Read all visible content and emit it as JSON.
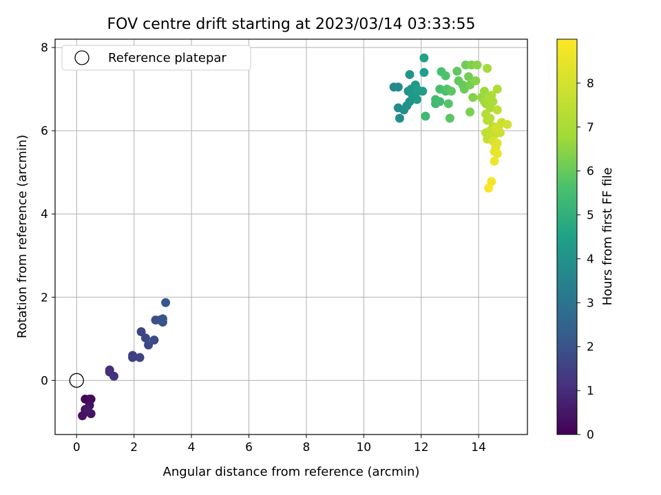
{
  "chart_data": {
    "type": "scatter",
    "title": "FOV centre drift starting at 2023/03/14 03:33:55",
    "xlabel": "Angular distance from reference (arcmin)",
    "ylabel": "Rotation from reference (arcmin)",
    "xlim": [
      -0.75,
      15.7
    ],
    "ylim": [
      -1.3,
      8.2
    ],
    "xticks": [
      0,
      2,
      4,
      6,
      8,
      10,
      12,
      14
    ],
    "yticks": [
      0,
      2,
      4,
      6,
      8
    ],
    "grid": true,
    "legend": {
      "placement": "top-left",
      "entries": [
        {
          "label": "Reference platepar",
          "marker": "open-circle"
        }
      ]
    },
    "reference_point": {
      "x": 0,
      "y": 0
    },
    "colorbar": {
      "label": "Hours from first FF file",
      "colormap": "viridis",
      "range": [
        0,
        9
      ],
      "ticks": [
        0,
        1,
        2,
        3,
        4,
        5,
        6,
        7,
        8
      ]
    },
    "points": [
      {
        "x": 0.3,
        "y": -0.45,
        "hours": 0.1
      },
      {
        "x": 0.45,
        "y": -0.45,
        "hours": 0.15
      },
      {
        "x": 0.5,
        "y": -0.45,
        "hours": 0.2
      },
      {
        "x": 0.3,
        "y": -0.7,
        "hours": 0.25
      },
      {
        "x": 0.45,
        "y": -0.6,
        "hours": 0.3
      },
      {
        "x": 0.4,
        "y": -0.75,
        "hours": 0.35
      },
      {
        "x": 0.2,
        "y": -0.85,
        "hours": 0.4
      },
      {
        "x": 0.5,
        "y": -0.8,
        "hours": 0.45
      },
      {
        "x": 0.35,
        "y": -0.7,
        "hours": 0.5
      },
      {
        "x": 1.15,
        "y": 0.25,
        "hours": 1.0
      },
      {
        "x": 1.15,
        "y": 0.2,
        "hours": 1.05
      },
      {
        "x": 1.3,
        "y": 0.1,
        "hours": 1.1
      },
      {
        "x": 1.95,
        "y": 0.6,
        "hours": 1.4
      },
      {
        "x": 1.95,
        "y": 0.55,
        "hours": 1.45
      },
      {
        "x": 2.2,
        "y": 0.55,
        "hours": 1.5
      },
      {
        "x": 2.25,
        "y": 1.17,
        "hours": 1.6
      },
      {
        "x": 2.4,
        "y": 1.02,
        "hours": 1.7
      },
      {
        "x": 2.5,
        "y": 0.85,
        "hours": 1.75
      },
      {
        "x": 2.7,
        "y": 0.97,
        "hours": 1.8
      },
      {
        "x": 2.75,
        "y": 1.45,
        "hours": 1.9
      },
      {
        "x": 2.9,
        "y": 1.45,
        "hours": 1.95
      },
      {
        "x": 3.0,
        "y": 1.4,
        "hours": 2.0
      },
      {
        "x": 3.0,
        "y": 1.48,
        "hours": 2.05
      },
      {
        "x": 3.1,
        "y": 1.87,
        "hours": 2.15
      },
      {
        "x": 11.05,
        "y": 7.05,
        "hours": 3.7
      },
      {
        "x": 11.2,
        "y": 7.05,
        "hours": 3.75
      },
      {
        "x": 11.2,
        "y": 6.55,
        "hours": 3.8
      },
      {
        "x": 11.25,
        "y": 6.3,
        "hours": 3.85
      },
      {
        "x": 11.4,
        "y": 6.5,
        "hours": 3.9
      },
      {
        "x": 11.5,
        "y": 6.6,
        "hours": 3.95
      },
      {
        "x": 11.55,
        "y": 6.95,
        "hours": 4.0
      },
      {
        "x": 11.6,
        "y": 6.7,
        "hours": 4.05
      },
      {
        "x": 11.6,
        "y": 7.35,
        "hours": 4.1
      },
      {
        "x": 11.65,
        "y": 7.0,
        "hours": 4.15
      },
      {
        "x": 11.7,
        "y": 6.85,
        "hours": 4.2
      },
      {
        "x": 11.8,
        "y": 7.1,
        "hours": 4.25
      },
      {
        "x": 11.85,
        "y": 6.75,
        "hours": 4.3
      },
      {
        "x": 11.9,
        "y": 6.95,
        "hours": 4.35
      },
      {
        "x": 11.85,
        "y": 7.0,
        "hours": 4.4
      },
      {
        "x": 12.05,
        "y": 6.95,
        "hours": 4.45
      },
      {
        "x": 12.1,
        "y": 7.4,
        "hours": 4.5
      },
      {
        "x": 12.1,
        "y": 7.75,
        "hours": 4.55
      },
      {
        "x": 12.15,
        "y": 6.35,
        "hours": 5.3
      },
      {
        "x": 12.5,
        "y": 6.65,
        "hours": 5.35
      },
      {
        "x": 12.5,
        "y": 6.75,
        "hours": 5.4
      },
      {
        "x": 12.65,
        "y": 6.7,
        "hours": 5.45
      },
      {
        "x": 12.65,
        "y": 7.0,
        "hours": 5.5
      },
      {
        "x": 12.7,
        "y": 7.42,
        "hours": 5.55
      },
      {
        "x": 12.85,
        "y": 6.95,
        "hours": 5.6
      },
      {
        "x": 12.85,
        "y": 7.32,
        "hours": 5.65
      },
      {
        "x": 12.9,
        "y": 7.0,
        "hours": 5.7
      },
      {
        "x": 12.95,
        "y": 6.65,
        "hours": 5.75
      },
      {
        "x": 13.0,
        "y": 6.3,
        "hours": 5.8
      },
      {
        "x": 13.05,
        "y": 6.95,
        "hours": 5.85
      },
      {
        "x": 13.25,
        "y": 7.43,
        "hours": 5.9
      },
      {
        "x": 13.3,
        "y": 7.2,
        "hours": 5.95
      },
      {
        "x": 13.45,
        "y": 7.1,
        "hours": 6.0
      },
      {
        "x": 13.5,
        "y": 7.0,
        "hours": 6.05
      },
      {
        "x": 13.55,
        "y": 7.58,
        "hours": 6.1
      },
      {
        "x": 13.65,
        "y": 7.3,
        "hours": 6.15
      },
      {
        "x": 13.7,
        "y": 7.1,
        "hours": 6.2
      },
      {
        "x": 13.7,
        "y": 6.45,
        "hours": 6.25
      },
      {
        "x": 13.75,
        "y": 7.58,
        "hours": 6.3
      },
      {
        "x": 13.8,
        "y": 6.8,
        "hours": 6.35
      },
      {
        "x": 13.9,
        "y": 7.2,
        "hours": 6.4
      },
      {
        "x": 13.95,
        "y": 7.58,
        "hours": 6.45
      },
      {
        "x": 14.1,
        "y": 6.8,
        "hours": 6.6
      },
      {
        "x": 14.2,
        "y": 6.95,
        "hours": 6.7
      },
      {
        "x": 14.2,
        "y": 6.7,
        "hours": 6.75
      },
      {
        "x": 14.25,
        "y": 6.65,
        "hours": 6.8
      },
      {
        "x": 14.3,
        "y": 7.5,
        "hours": 6.85
      },
      {
        "x": 14.35,
        "y": 6.8,
        "hours": 6.9
      },
      {
        "x": 14.4,
        "y": 6.55,
        "hours": 7.0
      },
      {
        "x": 14.45,
        "y": 6.85,
        "hours": 7.05
      },
      {
        "x": 14.5,
        "y": 6.7,
        "hours": 7.1
      },
      {
        "x": 14.65,
        "y": 7.0,
        "hours": 7.15
      },
      {
        "x": 14.25,
        "y": 6.4,
        "hours": 7.2
      },
      {
        "x": 14.3,
        "y": 6.25,
        "hours": 7.3
      },
      {
        "x": 14.4,
        "y": 6.3,
        "hours": 7.35
      },
      {
        "x": 14.5,
        "y": 6.1,
        "hours": 7.4
      },
      {
        "x": 14.65,
        "y": 6.5,
        "hours": 7.45
      },
      {
        "x": 14.25,
        "y": 5.95,
        "hours": 7.5
      },
      {
        "x": 14.3,
        "y": 5.8,
        "hours": 7.55
      },
      {
        "x": 14.4,
        "y": 6.0,
        "hours": 7.6
      },
      {
        "x": 14.55,
        "y": 5.9,
        "hours": 7.7
      },
      {
        "x": 14.7,
        "y": 6.1,
        "hours": 7.75
      },
      {
        "x": 14.75,
        "y": 5.95,
        "hours": 7.8
      },
      {
        "x": 14.8,
        "y": 6.2,
        "hours": 7.85
      },
      {
        "x": 15.0,
        "y": 6.15,
        "hours": 7.9
      },
      {
        "x": 14.6,
        "y": 6.05,
        "hours": 8.0
      },
      {
        "x": 14.5,
        "y": 5.75,
        "hours": 8.1
      },
      {
        "x": 14.6,
        "y": 5.6,
        "hours": 8.2
      },
      {
        "x": 14.65,
        "y": 5.7,
        "hours": 8.3
      },
      {
        "x": 14.55,
        "y": 5.5,
        "hours": 8.4
      },
      {
        "x": 14.65,
        "y": 5.45,
        "hours": 8.5
      },
      {
        "x": 14.55,
        "y": 5.27,
        "hours": 8.6
      },
      {
        "x": 14.45,
        "y": 4.78,
        "hours": 8.75
      },
      {
        "x": 14.35,
        "y": 4.62,
        "hours": 8.9
      }
    ]
  }
}
